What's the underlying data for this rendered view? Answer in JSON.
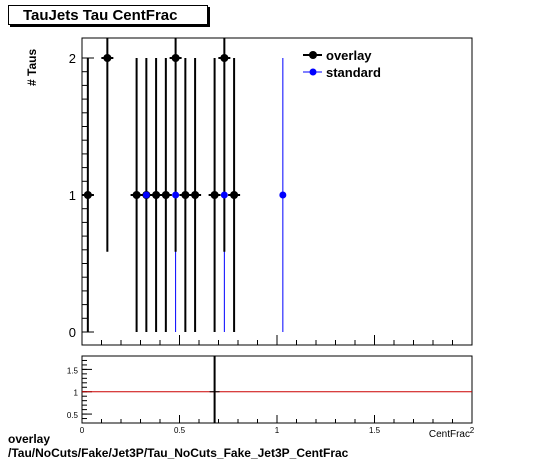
{
  "title": "TauJets Tau CentFrac",
  "footer": {
    "line1": "overlay",
    "line2": "/Tau/NoCuts/Fake/Jet3P/Tau_NoCuts_Fake_Jet3P_CentFrac"
  },
  "chart_data": {
    "type": "scatter",
    "ylabel": "# Taus",
    "xlabel": "CentFrac",
    "xlim": [
      0,
      2
    ],
    "ylim": [
      0,
      2.1
    ],
    "y_ticks": [
      "0",
      "1",
      "2"
    ],
    "legend_position": "top-right",
    "series": [
      {
        "name": "overlay",
        "color": "#000000",
        "x": [
          0.03,
          0.13,
          0.28,
          0.33,
          0.38,
          0.43,
          0.48,
          0.53,
          0.58,
          0.68,
          0.73,
          0.78
        ],
        "y": [
          1,
          2,
          1,
          1,
          1,
          1,
          2,
          1,
          1,
          1,
          2,
          1
        ]
      },
      {
        "name": "standard",
        "color": "#0000ff",
        "x": [
          0.33,
          0.48,
          0.73,
          1.03
        ],
        "y": [
          1,
          1,
          1,
          1
        ]
      }
    ],
    "ratio": {
      "ylim": [
        0.3,
        1.8
      ],
      "y_ticks": [
        "0.5",
        "1",
        "1.5"
      ],
      "x_ticks": [
        "0",
        "0.5",
        "1",
        "1.5",
        "2"
      ],
      "reference_line": 1,
      "reference_color": "#cc0000",
      "points": [
        {
          "x": 0.68,
          "y": 1
        }
      ]
    }
  }
}
